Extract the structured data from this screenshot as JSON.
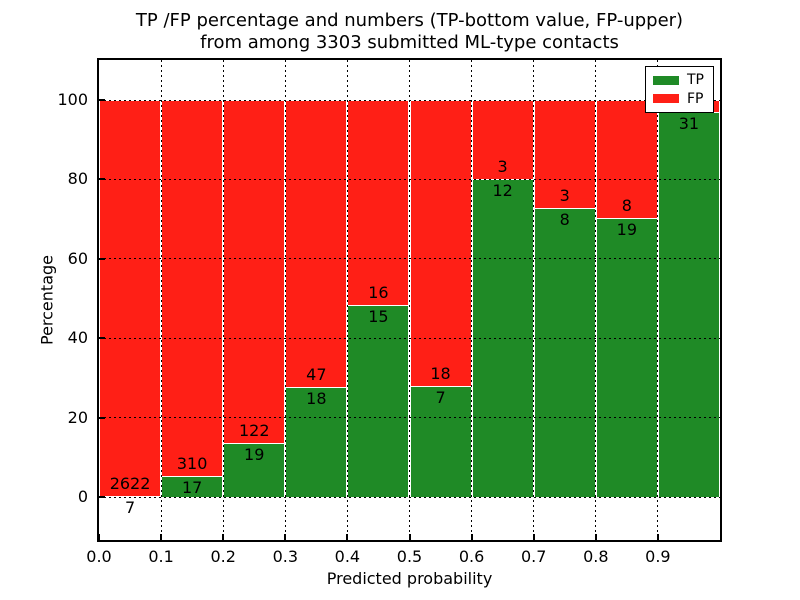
{
  "chart_data": {
    "type": "bar",
    "stacked": true,
    "title_line1": "TP /FP percentage and numbers (TP-bottom value, FP-upper)",
    "title_line2": "from among 3303 submitted ML-type contacts",
    "title": "TP /FP percentage and numbers (TP-bottom value, FP-upper) from among 3303 submitted ML-type contacts",
    "total_contacts": 3303,
    "xlabel": "Predicted probability",
    "ylabel": "Percentage",
    "x_tick_labels": [
      "0.0",
      "0.1",
      "0.2",
      "0.3",
      "0.4",
      "0.5",
      "0.6",
      "0.7",
      "0.8",
      "0.9"
    ],
    "y_tick_values": [
      0,
      20,
      40,
      60,
      80,
      100
    ],
    "y_tick_labels": [
      "0",
      "20",
      "40",
      "60",
      "80",
      "100"
    ],
    "xlim": [
      0.0,
      1.0
    ],
    "ylim": [
      -11,
      110
    ],
    "grid": {
      "visible": true,
      "style": "dotted",
      "color": "#000000"
    },
    "legend": {
      "position": "upper right",
      "entries": [
        {
          "label": "TP",
          "color": "#1f8a26"
        },
        {
          "label": "FP",
          "color": "#ff1f16"
        }
      ]
    },
    "bins": [
      {
        "range": [
          0.0,
          0.1
        ],
        "tp_count": 7,
        "fp_count": 2622,
        "tp_label": "7",
        "fp_label": "2622",
        "tp_pct": 0.27
      },
      {
        "range": [
          0.1,
          0.2
        ],
        "tp_count": 17,
        "fp_count": 310,
        "tp_label": "17",
        "fp_label": "310",
        "tp_pct": 5.2
      },
      {
        "range": [
          0.2,
          0.3
        ],
        "tp_count": 19,
        "fp_count": 122,
        "tp_label": "19",
        "fp_label": "122",
        "tp_pct": 13.5
      },
      {
        "range": [
          0.3,
          0.4
        ],
        "tp_count": 18,
        "fp_count": 47,
        "tp_label": "18",
        "fp_label": "47",
        "tp_pct": 27.7
      },
      {
        "range": [
          0.4,
          0.5
        ],
        "tp_count": 15,
        "fp_count": 16,
        "tp_label": "15",
        "fp_label": "16",
        "tp_pct": 48.4
      },
      {
        "range": [
          0.5,
          0.6
        ],
        "tp_count": 7,
        "fp_count": 18,
        "tp_label": "7",
        "fp_label": "18",
        "tp_pct": 28.0
      },
      {
        "range": [
          0.6,
          0.7
        ],
        "tp_count": 12,
        "fp_count": 3,
        "tp_label": "12",
        "fp_label": "3",
        "tp_pct": 80.0
      },
      {
        "range": [
          0.7,
          0.8
        ],
        "tp_count": 8,
        "fp_count": 3,
        "tp_label": "8",
        "fp_label": "3",
        "tp_pct": 72.7
      },
      {
        "range": [
          0.8,
          0.9
        ],
        "tp_count": 19,
        "fp_count": 8,
        "tp_label": "19",
        "fp_label": "8",
        "tp_pct": 70.4
      },
      {
        "range": [
          0.9,
          1.0
        ],
        "tp_count": 31,
        "fp_count": null,
        "tp_label": "31",
        "fp_label": "",
        "tp_pct": 96.9
      }
    ],
    "colors": {
      "tp": "#1f8a26",
      "fp": "#ff1f16",
      "background": "#ffffff",
      "text": "#000000"
    }
  }
}
